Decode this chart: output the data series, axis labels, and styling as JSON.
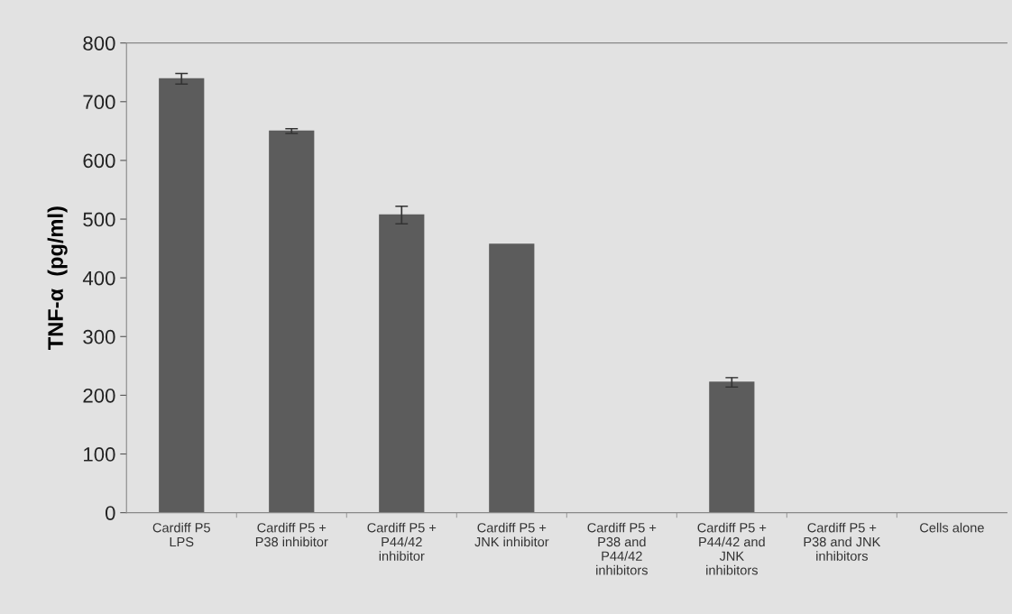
{
  "chart_data": {
    "type": "bar",
    "ylabel": "TNF-α  (pg/ml)",
    "categories": [
      "Cardiff P5\nLPS",
      "Cardiff P5 +\nP38 inhibitor",
      "Cardiff P5 +\nP44/42\ninhibitor",
      "Cardiff P5 +\nJNK inhibitor",
      "Cardiff P5 +\nP38 and\nP44/42\ninhibitors",
      "Cardiff P5 +\nP44/42 and\nJNK\ninhibitors",
      "Cardiff P5 +\nP38 and JNK\ninhibitors",
      "Cells alone"
    ],
    "values": [
      739,
      650,
      507,
      457,
      0,
      222,
      0,
      0
    ],
    "errors": [
      9,
      4,
      15,
      null,
      null,
      8,
      null,
      null
    ],
    "color": "#5c5c5c",
    "ylim": [
      0,
      800
    ],
    "yticks": [
      0,
      100,
      200,
      300,
      400,
      500,
      600,
      700,
      800
    ],
    "grid": false
  }
}
